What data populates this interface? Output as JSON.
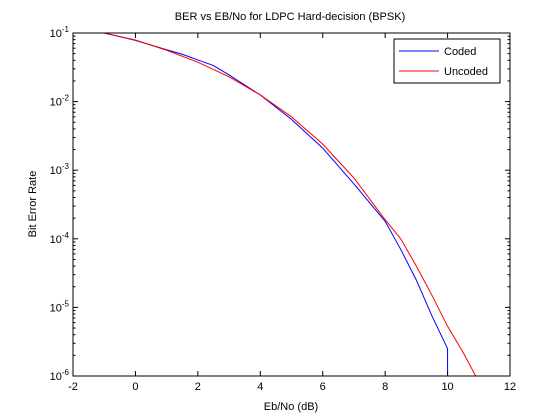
{
  "chart_data": {
    "type": "line",
    "title": "BER vs EB/No for LDPC Hard-decision (BPSK)",
    "xlabel": "Eb/No (dB)",
    "ylabel": "Bit Error Rate",
    "xlim": [
      -2,
      12
    ],
    "ylim": [
      1e-06,
      0.1
    ],
    "yscale": "log",
    "grid": false,
    "legend_position": "top-right",
    "x_ticks": [
      {
        "value": -2,
        "label": "-2"
      },
      {
        "value": 0,
        "label": "0"
      },
      {
        "value": 2,
        "label": "2"
      },
      {
        "value": 4,
        "label": "4"
      },
      {
        "value": 6,
        "label": "6"
      },
      {
        "value": 8,
        "label": "8"
      },
      {
        "value": 10,
        "label": "10"
      },
      {
        "value": 12,
        "label": "12"
      }
    ],
    "y_ticks": [
      {
        "value": 0.1,
        "base": "10",
        "exp": "-1"
      },
      {
        "value": 0.01,
        "base": "10",
        "exp": "-2"
      },
      {
        "value": 0.001,
        "base": "10",
        "exp": "-3"
      },
      {
        "value": 0.0001,
        "base": "10",
        "exp": "-4"
      },
      {
        "value": 1e-05,
        "base": "10",
        "exp": "-5"
      },
      {
        "value": 1e-06,
        "base": "10",
        "exp": "-6"
      }
    ],
    "series": [
      {
        "name": "Coded",
        "color": "#0000ff",
        "x": [
          -1,
          0,
          1,
          1.5,
          2,
          2.5,
          3,
          4,
          5,
          6,
          7,
          8,
          8.5,
          9,
          9.5,
          10,
          10,
          10.05
        ],
        "y": [
          0.1,
          0.078,
          0.057,
          0.049,
          0.0405,
          0.0335,
          0.0245,
          0.0125,
          0.0055,
          0.0021,
          0.00063,
          0.00018,
          7e-05,
          2.5e-05,
          7.5e-06,
          2.5e-06,
          1e-06,
          1e-06
        ]
      },
      {
        "name": "Uncoded",
        "color": "#ff0000",
        "x": [
          -1,
          0,
          1,
          2,
          3,
          4,
          5,
          6,
          7,
          8,
          8.5,
          9,
          9.5,
          10,
          10.5,
          10.9
        ],
        "y": [
          0.1,
          0.079,
          0.056,
          0.0375,
          0.023,
          0.0125,
          0.006,
          0.0024,
          0.00077,
          0.00019,
          0.0001,
          4e-05,
          1.5e-05,
          5.3e-06,
          2.2e-06,
          1e-06
        ]
      }
    ]
  }
}
